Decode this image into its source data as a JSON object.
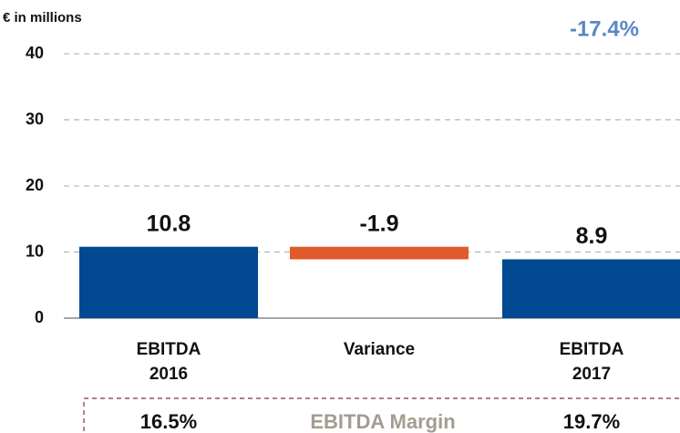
{
  "chart_data": {
    "type": "waterfall",
    "unit_label": "€ in millions",
    "change_label": "-17.4%",
    "categories": [
      "EBITDA 2016",
      "Variance",
      "EBITDA 2017"
    ],
    "values": [
      10.8,
      -1.9,
      8.9
    ],
    "bar_types": [
      "total",
      "delta",
      "total"
    ],
    "colors": {
      "total": "#004990",
      "delta": "#e05a2b"
    },
    "ylim": [
      0,
      40
    ],
    "yticks": [
      0,
      10,
      20,
      30,
      40
    ],
    "grid": true,
    "margin": {
      "label": "EBITDA Margin",
      "values": [
        16.5,
        19.7
      ],
      "value_labels": [
        "16.5%",
        "19.7%"
      ]
    }
  }
}
